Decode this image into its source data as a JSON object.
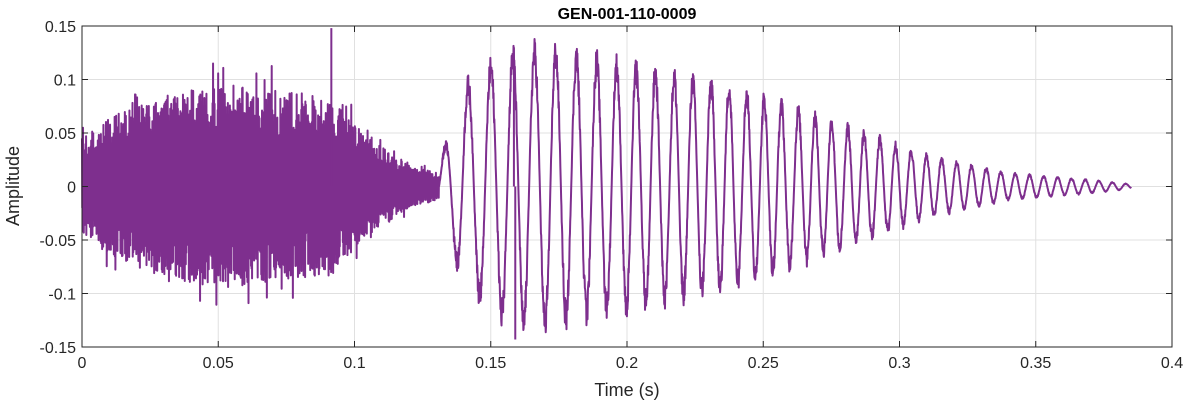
{
  "chart_data": {
    "type": "line",
    "title": "GEN-001-110-0009",
    "xlabel": "Time (s)",
    "ylabel": "Amplitude",
    "xlim": [
      0,
      0.4
    ],
    "ylim": [
      -0.15,
      0.15
    ],
    "grid": true,
    "legend": "none",
    "x_ticks": [
      "0",
      "0.05",
      "0.1",
      "0.15",
      "0.2",
      "0.25",
      "0.3",
      "0.35",
      "0.4"
    ],
    "y_ticks": [
      "0.15",
      "0.1",
      "0.05",
      "0",
      "-0.05",
      "-0.1",
      "-0.15"
    ],
    "series": [
      {
        "color": "#7e2f8e",
        "x_start": 0.0,
        "x_end": 0.385,
        "segments": [
          {
            "kind": "noise",
            "t0": 0.0,
            "t1": 0.131,
            "envelope": [
              [
                0.0,
                0.045
              ],
              [
                0.01,
                0.065
              ],
              [
                0.03,
                0.085
              ],
              [
                0.05,
                0.095
              ],
              [
                0.07,
                0.09
              ],
              [
                0.09,
                0.085
              ],
              [
                0.105,
                0.045
              ],
              [
                0.12,
                0.02
              ],
              [
                0.131,
                0.012
              ]
            ]
          },
          {
            "kind": "tone",
            "t0": 0.131,
            "t1": 0.385,
            "start_freq_hz": 115,
            "end_freq_hz": 205,
            "envelope": [
              [
                0.131,
                0.02
              ],
              [
                0.14,
                0.09
              ],
              [
                0.155,
                0.12
              ],
              [
                0.17,
                0.125
              ],
              [
                0.2,
                0.11
              ],
              [
                0.24,
                0.09
              ],
              [
                0.28,
                0.055
              ],
              [
                0.31,
                0.028
              ],
              [
                0.34,
                0.012
              ],
              [
                0.37,
                0.006
              ],
              [
                0.385,
                0.002
              ]
            ]
          }
        ],
        "peaks": [
          {
            "x": 0.0915,
            "y": 0.148
          },
          {
            "x": 0.159,
            "y": -0.143
          },
          {
            "x": 0.1585,
            "y": 0.13
          }
        ]
      }
    ]
  }
}
